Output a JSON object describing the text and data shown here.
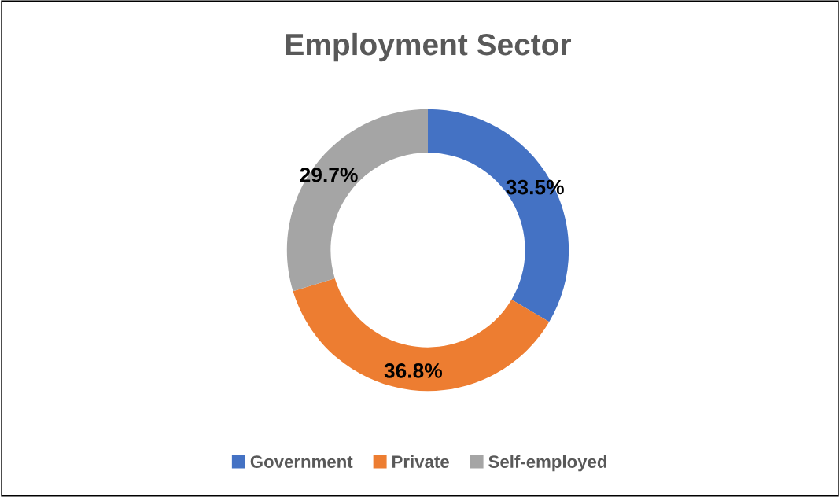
{
  "chart_data": {
    "type": "donut",
    "title": "Employment Sector",
    "categories": [
      "Government",
      "Private",
      "Self-employed"
    ],
    "values": [
      33.5,
      36.8,
      29.7
    ],
    "colors": [
      "#4472c4",
      "#ed7d31",
      "#a5a5a5"
    ],
    "value_labels": [
      "33.5%",
      "36.8%",
      "29.7%"
    ],
    "legend": "bottom"
  }
}
